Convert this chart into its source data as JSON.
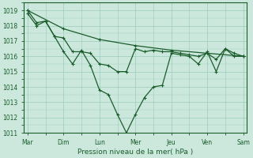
{
  "background_color": "#cce8dd",
  "grid_color": "#99ccbb",
  "line_color": "#1a5c2a",
  "xlabel": "Pression niveau de la mer( hPa )",
  "ylim": [
    1011,
    1019.5
  ],
  "yticks": [
    1011,
    1012,
    1013,
    1014,
    1015,
    1016,
    1017,
    1018,
    1019
  ],
  "days": [
    "Mar",
    "Dim",
    "Lun",
    "Mer",
    "Jeu",
    "Ven",
    "Sam"
  ],
  "day_positions": [
    0,
    2,
    4,
    6,
    8,
    10,
    12
  ],
  "s1x": [
    0,
    2,
    4,
    6,
    8,
    10,
    12
  ],
  "s1y": [
    1019.0,
    1017.8,
    1017.1,
    1016.7,
    1016.4,
    1016.2,
    1016.0
  ],
  "s2x": [
    0,
    0.5,
    1.0,
    1.5,
    2.0,
    2.5,
    3.0,
    3.5,
    4.0,
    4.5,
    5.0,
    5.5,
    6.0,
    6.5,
    7.0,
    7.5,
    8.0,
    8.5,
    9.0,
    9.5,
    10.0,
    10.5,
    11.0,
    11.5,
    12.0
  ],
  "s2y": [
    1018.8,
    1018.0,
    1018.3,
    1017.3,
    1017.2,
    1016.3,
    1016.3,
    1016.2,
    1015.5,
    1015.4,
    1015.0,
    1015.0,
    1016.5,
    1016.3,
    1016.4,
    1016.3,
    1016.3,
    1016.2,
    1016.1,
    1016.0,
    1016.2,
    1015.8,
    1016.5,
    1016.2,
    1016.0
  ],
  "s3x": [
    0,
    0.5,
    1.0,
    1.5,
    2.0,
    2.5,
    3.0,
    3.5,
    4.0,
    4.5,
    5.0,
    5.5,
    6.0,
    6.5,
    7.0,
    7.5,
    8.0,
    8.5,
    9.0,
    9.5,
    10.0,
    10.5,
    11.0,
    11.5,
    12.0
  ],
  "s3y": [
    1019.0,
    1018.2,
    1018.3,
    1017.3,
    1016.3,
    1015.5,
    1016.4,
    1015.4,
    1013.8,
    1013.5,
    1012.2,
    1011.0,
    1012.2,
    1013.3,
    1014.0,
    1014.1,
    1016.2,
    1016.1,
    1016.0,
    1015.5,
    1016.3,
    1015.0,
    1016.5,
    1016.0,
    1016.0
  ]
}
